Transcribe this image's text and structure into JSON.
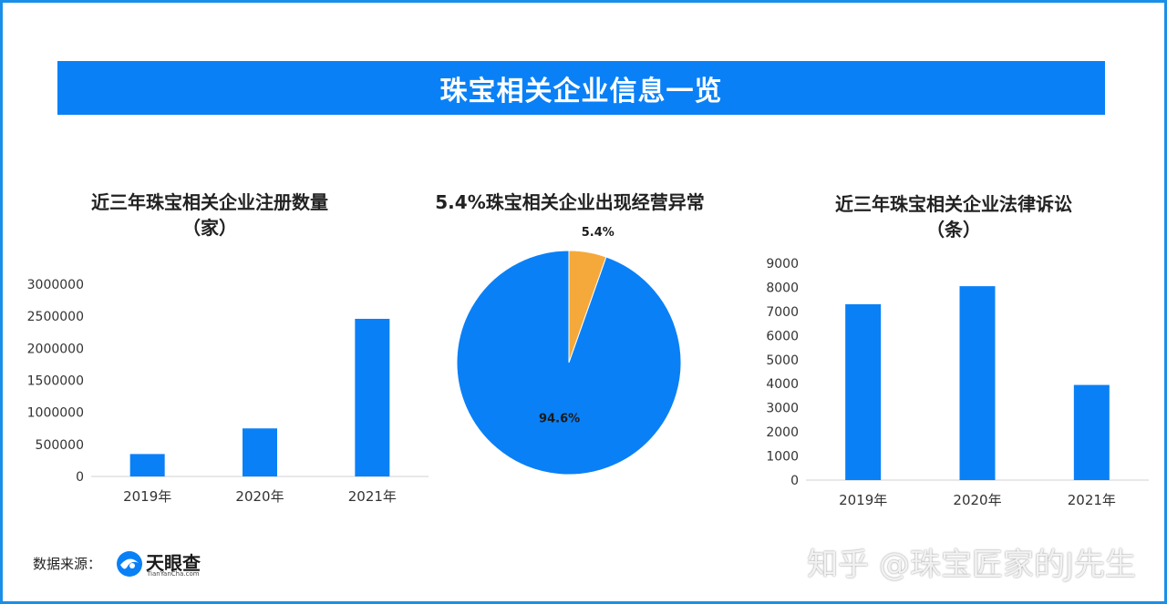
{
  "header": {
    "title": "珠宝相关企业信息一览"
  },
  "charts": {
    "registrations": {
      "title_line1": "近三年珠宝相关企业注册数量",
      "title_line2": "（家）"
    },
    "abnormal": {
      "title": "5.4%珠宝相关企业出现经营异常"
    },
    "lawsuits": {
      "title_line1": "近三年珠宝相关企业法律诉讼",
      "title_line2": "（条）"
    }
  },
  "chart_data": [
    {
      "type": "bar",
      "title": "近三年珠宝相关企业注册数量（家）",
      "categories": [
        "2019年",
        "2020年",
        "2021年"
      ],
      "values": [
        350000,
        750000,
        2460000
      ],
      "ylim": [
        0,
        3000000
      ],
      "yticks": [
        0,
        500000,
        1000000,
        1500000,
        2000000,
        2500000,
        3000000
      ],
      "color": "#0a80f6",
      "grid": false
    },
    {
      "type": "pie",
      "title": "5.4%珠宝相关企业出现经营异常",
      "slices": [
        {
          "label": "5.4%",
          "value": 5.4,
          "color": "#f5a93a"
        },
        {
          "label": "94.6%",
          "value": 94.6,
          "color": "#0a80f6"
        }
      ]
    },
    {
      "type": "bar",
      "title": "近三年珠宝相关企业法律诉讼（条）",
      "categories": [
        "2019年",
        "2020年",
        "2021年"
      ],
      "values": [
        7300,
        8050,
        3950
      ],
      "ylim": [
        0,
        9000
      ],
      "yticks": [
        0,
        1000,
        2000,
        3000,
        4000,
        5000,
        6000,
        7000,
        8000,
        9000
      ],
      "color": "#0a80f6",
      "grid": false
    }
  ],
  "footer": {
    "source_label": "数据来源：",
    "logo_name": "天眼查",
    "logo_sub": "TianYanCha.com",
    "logo_icon": "tianyancha-logo-icon",
    "watermark": "知乎 @珠宝匠家的J先生"
  }
}
